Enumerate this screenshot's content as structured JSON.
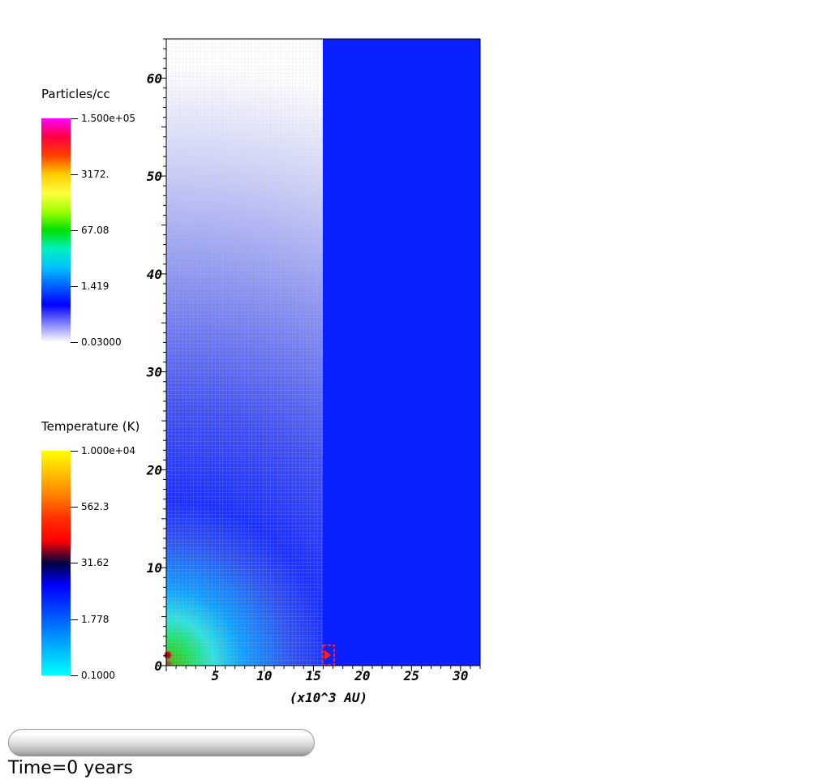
{
  "colorbars": {
    "density": {
      "title": "Particles/cc",
      "labels": [
        "1.500e+05",
        "3172.",
        "67.08",
        "1.419",
        "0.03000"
      ],
      "gradient": [
        "#ff00ff",
        "#ff0040",
        "#ff4000",
        "#ffcc00",
        "#ffff40",
        "#a0ff00",
        "#00e000",
        "#00f0c0",
        "#00c0ff",
        "#0060ff",
        "#0000ff",
        "#8080ff",
        "#ffffff"
      ]
    },
    "temperature": {
      "title": "Temperature (K)",
      "labels": [
        "1.000e+04",
        "562.3",
        "31.62",
        "1.778",
        "0.1000"
      ],
      "gradient": [
        "#ffff00",
        "#ffc000",
        "#ff8000",
        "#ff3000",
        "#ff0000",
        "#000040",
        "#0000ff",
        "#0040ff",
        "#0080ff",
        "#00c0ff",
        "#00ffff"
      ]
    }
  },
  "chart_data": {
    "type": "heatmap",
    "xlabel": "(x10^3 AU)",
    "ylabel": "",
    "xlim": [
      0,
      32
    ],
    "ylim": [
      0,
      64
    ],
    "x_ticks": [
      5,
      10,
      15,
      20,
      25,
      30
    ],
    "y_ticks": [
      0,
      10,
      20,
      30,
      40,
      50,
      60
    ],
    "left_panel": {
      "quantity": "Particles/cc",
      "x_range": [
        0,
        16
      ],
      "profile": "radially decreasing density centred at origin"
    },
    "right_panel": {
      "quantity": "Temperature (K)",
      "x_range": [
        16,
        32
      ],
      "color": "#0a20ff"
    }
  },
  "time": {
    "label": "Time=0 years"
  }
}
